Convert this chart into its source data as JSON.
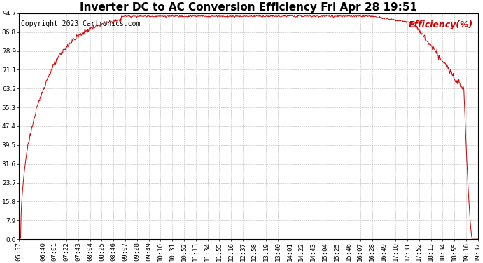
{
  "title": "Inverter DC to AC Conversion Efficiency Fri Apr 28 19:51",
  "copyright_text": "Copyright 2023 Cartronics.com",
  "legend_label": "Efficiency(%)",
  "line_color": "#cc0000",
  "copyright_color": "#000000",
  "legend_color": "#cc0000",
  "background_color": "#ffffff",
  "grid_color": "#b0b0b0",
  "yticks": [
    0.0,
    7.9,
    15.8,
    23.7,
    31.6,
    39.5,
    47.4,
    55.3,
    63.2,
    71.1,
    78.9,
    86.8,
    94.7
  ],
  "xtick_labels": [
    "05:57",
    "06:40",
    "07:01",
    "07:22",
    "07:43",
    "08:04",
    "08:25",
    "08:46",
    "09:07",
    "09:28",
    "09:49",
    "10:10",
    "10:31",
    "10:52",
    "11:13",
    "11:34",
    "11:55",
    "12:16",
    "12:37",
    "12:58",
    "13:19",
    "13:40",
    "14:01",
    "14:22",
    "14:43",
    "15:04",
    "15:25",
    "15:46",
    "16:07",
    "16:28",
    "16:49",
    "17:10",
    "17:31",
    "17:52",
    "18:13",
    "18:34",
    "18:55",
    "19:16",
    "19:37"
  ],
  "ylim": [
    0.0,
    94.7
  ],
  "title_fontsize": 11,
  "copyright_fontsize": 7,
  "legend_fontsize": 9,
  "tick_fontsize": 6.5,
  "line_width": 0.7,
  "figwidth": 6.9,
  "figheight": 3.75,
  "dpi": 100
}
